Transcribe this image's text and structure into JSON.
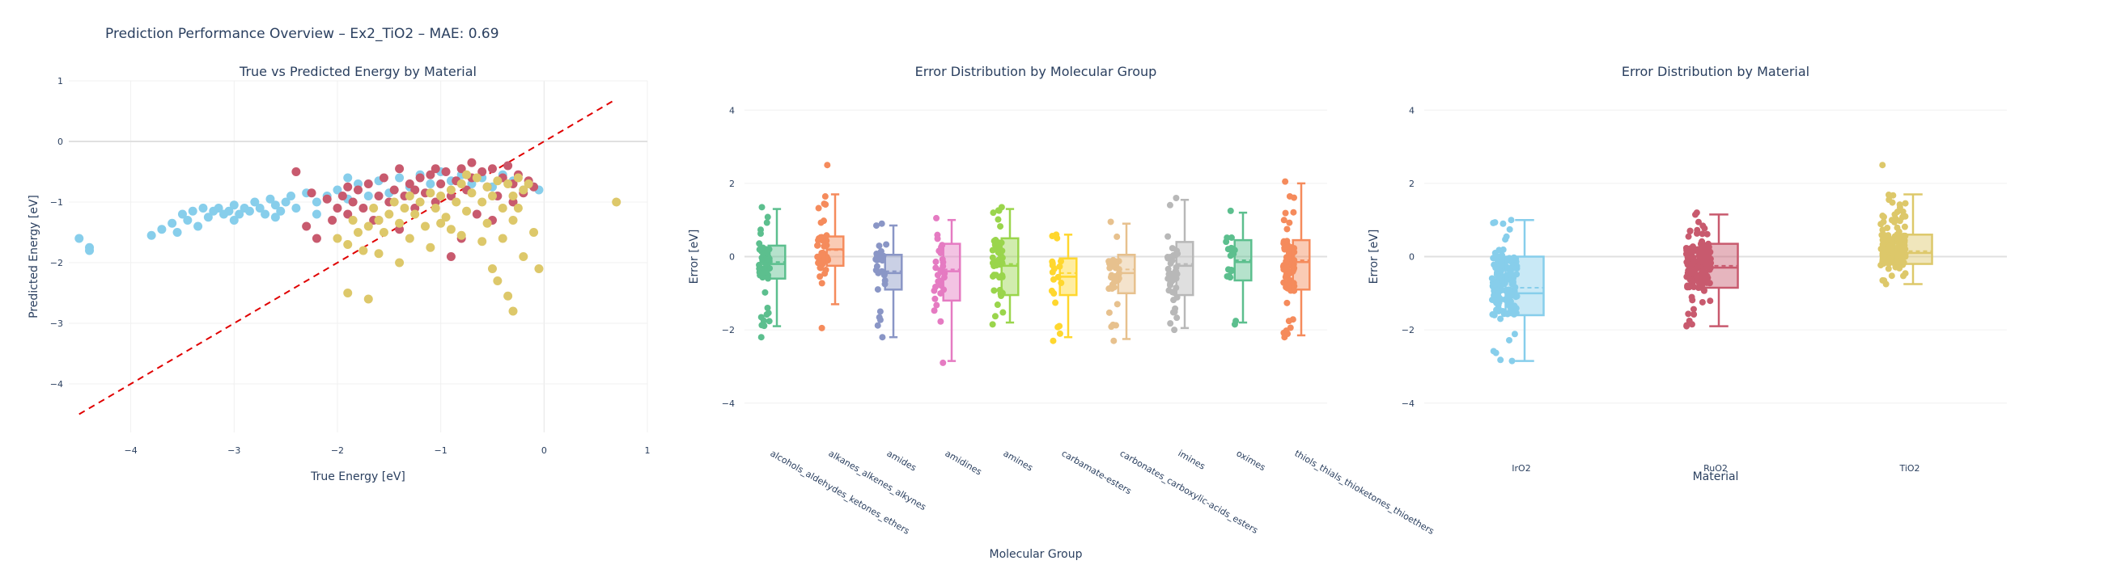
{
  "figure_title": "Prediction Performance Overview – Ex2_TiO2 – MAE: 0.69",
  "chart_data": [
    {
      "type": "scatter",
      "title": "True vs Predicted Energy by Material",
      "xlabel": "True Energy [eV]",
      "ylabel": "Predicted Energy [eV]",
      "xlim": [
        -4.6,
        1.0
      ],
      "ylim": [
        -4.8,
        1.0
      ],
      "xticks": [
        -4,
        -3,
        -2,
        -1,
        0,
        1
      ],
      "yticks": [
        -4,
        -3,
        -2,
        -1,
        0,
        1
      ],
      "grid": true,
      "reference_line": {
        "x": [
          -4.5,
          0.7
        ],
        "y": [
          -4.5,
          0.7
        ],
        "color": "#e00000",
        "dash": "dashed"
      },
      "series": [
        {
          "color": "#87ceeb",
          "points": [
            [
              -4.5,
              -1.6
            ],
            [
              -4.4,
              -1.75
            ],
            [
              -4.4,
              -1.8
            ],
            [
              -3.8,
              -1.55
            ],
            [
              -3.7,
              -1.45
            ],
            [
              -3.6,
              -1.35
            ],
            [
              -3.55,
              -1.5
            ],
            [
              -3.5,
              -1.2
            ],
            [
              -3.45,
              -1.3
            ],
            [
              -3.4,
              -1.15
            ],
            [
              -3.35,
              -1.4
            ],
            [
              -3.3,
              -1.1
            ],
            [
              -3.25,
              -1.25
            ],
            [
              -3.2,
              -1.15
            ],
            [
              -3.15,
              -1.1
            ],
            [
              -3.1,
              -1.2
            ],
            [
              -3.05,
              -1.15
            ],
            [
              -3.0,
              -1.05
            ],
            [
              -2.95,
              -1.2
            ],
            [
              -2.9,
              -1.1
            ],
            [
              -2.85,
              -1.15
            ],
            [
              -2.8,
              -1.0
            ],
            [
              -2.75,
              -1.1
            ],
            [
              -2.7,
              -1.2
            ],
            [
              -2.65,
              -0.95
            ],
            [
              -2.6,
              -1.05
            ],
            [
              -2.55,
              -1.15
            ],
            [
              -2.5,
              -1.0
            ],
            [
              -2.45,
              -0.9
            ],
            [
              -2.4,
              -1.1
            ],
            [
              -2.3,
              -0.85
            ],
            [
              -2.2,
              -1.0
            ],
            [
              -2.1,
              -0.9
            ],
            [
              -2.0,
              -0.8
            ],
            [
              -1.9,
              -0.95
            ],
            [
              -1.8,
              -0.7
            ],
            [
              -1.7,
              -0.9
            ],
            [
              -1.6,
              -0.65
            ],
            [
              -1.5,
              -0.85
            ],
            [
              -1.4,
              -0.6
            ],
            [
              -1.3,
              -0.75
            ],
            [
              -1.2,
              -0.55
            ],
            [
              -1.1,
              -0.7
            ],
            [
              -1.0,
              -0.5
            ],
            [
              -0.9,
              -0.65
            ],
            [
              -0.8,
              -0.55
            ],
            [
              -0.7,
              -0.7
            ],
            [
              -0.6,
              -0.6
            ],
            [
              -0.5,
              -0.75
            ],
            [
              -0.4,
              -0.55
            ],
            [
              -0.3,
              -0.65
            ],
            [
              -0.2,
              -0.8
            ],
            [
              -0.1,
              -0.75
            ],
            [
              -0.05,
              -0.8
            ],
            [
              -1.9,
              -0.6
            ],
            [
              -2.2,
              -1.2
            ],
            [
              -2.6,
              -1.25
            ],
            [
              -3.0,
              -1.3
            ]
          ]
        },
        {
          "color": "#c85a6e",
          "points": [
            [
              -2.4,
              -0.5
            ],
            [
              -2.3,
              -1.4
            ],
            [
              -2.2,
              -1.6
            ],
            [
              -2.1,
              -0.95
            ],
            [
              -2.05,
              -1.3
            ],
            [
              -2.0,
              -1.1
            ],
            [
              -1.95,
              -0.9
            ],
            [
              -1.9,
              -1.2
            ],
            [
              -1.85,
              -1.0
            ],
            [
              -1.8,
              -0.8
            ],
            [
              -1.75,
              -1.1
            ],
            [
              -1.7,
              -0.7
            ],
            [
              -1.65,
              -1.3
            ],
            [
              -1.6,
              -0.9
            ],
            [
              -1.55,
              -0.6
            ],
            [
              -1.5,
              -1.0
            ],
            [
              -1.45,
              -0.8
            ],
            [
              -1.4,
              -0.45
            ],
            [
              -1.35,
              -0.9
            ],
            [
              -1.3,
              -0.7
            ],
            [
              -1.25,
              -1.1
            ],
            [
              -1.2,
              -0.6
            ],
            [
              -1.15,
              -0.85
            ],
            [
              -1.1,
              -0.55
            ],
            [
              -1.05,
              -1.0
            ],
            [
              -1.0,
              -0.7
            ],
            [
              -0.95,
              -0.5
            ],
            [
              -0.9,
              -0.9
            ],
            [
              -0.85,
              -0.65
            ],
            [
              -0.8,
              -0.45
            ],
            [
              -0.75,
              -0.8
            ],
            [
              -0.7,
              -0.6
            ],
            [
              -0.65,
              -1.2
            ],
            [
              -0.6,
              -0.5
            ],
            [
              -0.55,
              -0.75
            ],
            [
              -0.5,
              -0.45
            ],
            [
              -0.45,
              -0.9
            ],
            [
              -0.4,
              -0.6
            ],
            [
              -0.35,
              -0.4
            ],
            [
              -0.3,
              -0.7
            ],
            [
              -0.25,
              -0.55
            ],
            [
              -0.2,
              -0.85
            ],
            [
              -0.15,
              -0.65
            ],
            [
              -0.1,
              -0.75
            ],
            [
              -0.8,
              -1.6
            ],
            [
              -0.9,
              -1.9
            ],
            [
              -1.4,
              -1.45
            ],
            [
              -1.6,
              -1.3
            ],
            [
              -1.9,
              -0.75
            ],
            [
              -2.25,
              -0.85
            ],
            [
              -0.5,
              -1.3
            ],
            [
              -0.7,
              -0.35
            ],
            [
              -1.05,
              -0.45
            ],
            [
              -1.25,
              -0.8
            ],
            [
              -0.3,
              -1.0
            ]
          ]
        },
        {
          "color": "#ddc86a",
          "points": [
            [
              -2.0,
              -1.6
            ],
            [
              -1.9,
              -1.7
            ],
            [
              -1.85,
              -1.3
            ],
            [
              -1.8,
              -1.5
            ],
            [
              -1.75,
              -1.8
            ],
            [
              -1.7,
              -1.4
            ],
            [
              -1.65,
              -1.1
            ],
            [
              -1.6,
              -1.3
            ],
            [
              -1.55,
              -1.5
            ],
            [
              -1.5,
              -1.2
            ],
            [
              -1.45,
              -1.0
            ],
            [
              -1.4,
              -1.35
            ],
            [
              -1.35,
              -1.1
            ],
            [
              -1.3,
              -0.9
            ],
            [
              -1.25,
              -1.2
            ],
            [
              -1.2,
              -1.0
            ],
            [
              -1.15,
              -1.4
            ],
            [
              -1.1,
              -0.85
            ],
            [
              -1.05,
              -1.1
            ],
            [
              -1.0,
              -0.9
            ],
            [
              -0.95,
              -1.25
            ],
            [
              -0.9,
              -0.8
            ],
            [
              -0.85,
              -1.0
            ],
            [
              -0.8,
              -0.7
            ],
            [
              -0.75,
              -1.15
            ],
            [
              -0.7,
              -0.85
            ],
            [
              -0.65,
              -0.6
            ],
            [
              -0.6,
              -1.0
            ],
            [
              -0.55,
              -0.75
            ],
            [
              -0.5,
              -0.9
            ],
            [
              -0.45,
              -0.65
            ],
            [
              -0.4,
              -1.1
            ],
            [
              -0.35,
              -0.7
            ],
            [
              -0.3,
              -0.9
            ],
            [
              -0.25,
              -0.6
            ],
            [
              -0.2,
              -0.8
            ],
            [
              -0.15,
              -0.7
            ],
            [
              -0.1,
              -1.5
            ],
            [
              -1.9,
              -2.5
            ],
            [
              -1.7,
              -2.6
            ],
            [
              -1.4,
              -2.0
            ],
            [
              -1.1,
              -1.75
            ],
            [
              -0.8,
              -1.55
            ],
            [
              -0.6,
              -1.65
            ],
            [
              -0.5,
              -2.1
            ],
            [
              -0.45,
              -2.3
            ],
            [
              -0.35,
              -2.55
            ],
            [
              -0.3,
              -2.8
            ],
            [
              -0.2,
              -1.9
            ],
            [
              -0.05,
              -2.1
            ],
            [
              0.7,
              -1.0
            ],
            [
              -0.3,
              -1.3
            ],
            [
              -0.4,
              -1.6
            ],
            [
              -0.9,
              -1.45
            ],
            [
              -1.3,
              -1.6
            ],
            [
              -1.6,
              -1.85
            ],
            [
              -0.75,
              -0.55
            ],
            [
              -0.55,
              -1.35
            ],
            [
              -0.25,
              -1.1
            ],
            [
              -1.0,
              -1.35
            ]
          ]
        }
      ]
    },
    {
      "type": "box",
      "title": "Error Distribution by Molecular Group",
      "xlabel": "Molecular Group",
      "ylabel": "Error [eV]",
      "ylim": [
        -4.8,
        4.8
      ],
      "yticks": [
        -4,
        -2,
        0,
        2,
        4
      ],
      "categories": [
        "alcohols_aldehydes_ketones_ethers",
        "alkanes_alkenes_alkynes",
        "amides",
        "amidines",
        "amines",
        "carbamate-esters",
        "carbonates_carboxylic-acids_esters",
        "imines",
        "oximes",
        "thiols_thials_thioketones_thioethers"
      ],
      "colors": [
        "#5cbf8e",
        "#f58b5c",
        "#8a96c6",
        "#e57bc2",
        "#9ad54c",
        "#ffd72e",
        "#e7c18e",
        "#b8b8b8",
        "#5cbf8e",
        "#f58b5c"
      ],
      "stats": [
        {
          "min": -1.9,
          "q1": -0.6,
          "median": -0.2,
          "mean": -0.15,
          "q3": 0.3,
          "max": 1.3,
          "n": 60,
          "pts_lo": -2.2,
          "pts_hi": 1.35
        },
        {
          "min": -1.3,
          "q1": -0.25,
          "median": 0.2,
          "mean": 0.18,
          "q3": 0.55,
          "max": 1.7,
          "n": 45,
          "pts_lo": -1.95,
          "pts_hi": 2.5
        },
        {
          "min": -2.2,
          "q1": -0.9,
          "median": -0.45,
          "mean": -0.4,
          "q3": 0.05,
          "max": 0.85,
          "n": 30,
          "pts_lo": -2.2,
          "pts_hi": 0.9
        },
        {
          "min": -2.85,
          "q1": -1.2,
          "median": -0.4,
          "mean": -0.35,
          "q3": 0.35,
          "max": 1.0,
          "n": 30,
          "pts_lo": -2.9,
          "pts_hi": 1.05
        },
        {
          "min": -1.8,
          "q1": -1.05,
          "median": -0.25,
          "mean": -0.2,
          "q3": 0.5,
          "max": 1.3,
          "n": 45,
          "pts_lo": -1.85,
          "pts_hi": 1.35
        },
        {
          "min": -2.2,
          "q1": -1.05,
          "median": -0.55,
          "mean": -0.45,
          "q3": -0.05,
          "max": 0.6,
          "n": 20,
          "pts_lo": -2.3,
          "pts_hi": 0.6
        },
        {
          "min": -2.25,
          "q1": -1.0,
          "median": -0.45,
          "mean": -0.35,
          "q3": 0.05,
          "max": 0.9,
          "n": 40,
          "pts_lo": -2.3,
          "pts_hi": 0.95
        },
        {
          "min": -1.95,
          "q1": -1.05,
          "median": -0.25,
          "mean": -0.2,
          "q3": 0.4,
          "max": 1.55,
          "n": 45,
          "pts_lo": -2.0,
          "pts_hi": 1.6
        },
        {
          "min": -1.8,
          "q1": -0.65,
          "median": -0.15,
          "mean": -0.1,
          "q3": 0.45,
          "max": 1.2,
          "n": 20,
          "pts_lo": -1.85,
          "pts_hi": 1.25
        },
        {
          "min": -2.15,
          "q1": -0.9,
          "median": -0.15,
          "mean": -0.1,
          "q3": 0.45,
          "max": 2.0,
          "n": 90,
          "pts_lo": -2.2,
          "pts_hi": 2.05
        }
      ]
    },
    {
      "type": "box",
      "title": "Error Distribution by Material",
      "xlabel": "Material",
      "ylabel": "Error [eV]",
      "ylim": [
        -4.8,
        4.8
      ],
      "yticks": [
        -4,
        -2,
        0,
        2,
        4
      ],
      "categories": [
        "IrO2",
        "RuO2",
        "TiO2"
      ],
      "colors": [
        "#87ceeb",
        "#c85a6e",
        "#ddc86a"
      ],
      "stats": [
        {
          "min": -2.85,
          "q1": -1.6,
          "median": -1.0,
          "mean": -0.85,
          "q3": 0.0,
          "max": 1.0,
          "n": 160,
          "pts_lo": -2.85,
          "pts_hi": 1.0
        },
        {
          "min": -1.9,
          "q1": -0.85,
          "median": -0.3,
          "mean": -0.25,
          "q3": 0.35,
          "max": 1.15,
          "n": 160,
          "pts_lo": -1.9,
          "pts_hi": 1.2
        },
        {
          "min": -0.75,
          "q1": -0.2,
          "median": 0.1,
          "mean": 0.15,
          "q3": 0.6,
          "max": 1.7,
          "n": 160,
          "pts_lo": -0.75,
          "pts_hi": 2.5
        }
      ]
    }
  ]
}
